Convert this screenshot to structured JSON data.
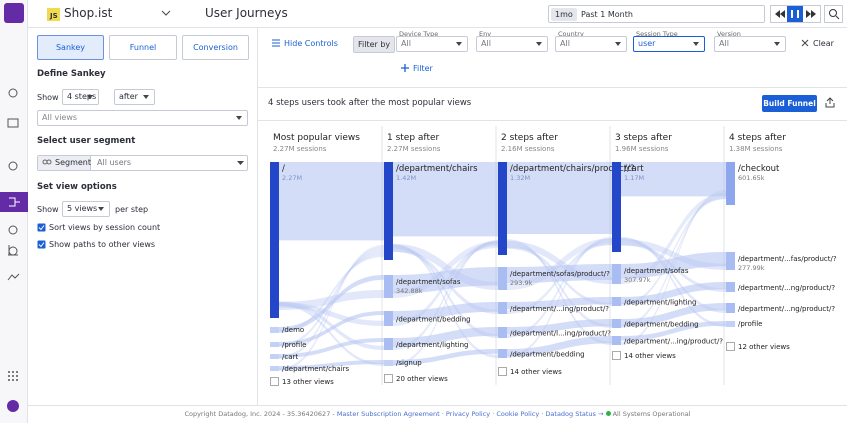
{
  "app": {
    "badge": "JS",
    "name": "Shop.ist",
    "page_title": "User Journeys",
    "time_short": "1mo",
    "time_range": "Past 1 Month"
  },
  "panel": {
    "tabs": [
      "Sankey",
      "Funnel",
      "Conversion"
    ],
    "define_title": "Define Sankey",
    "show_label": "Show",
    "steps": "4 steps",
    "direction": "after",
    "view_placeholder": "All views",
    "segment_title": "Select user segment",
    "segment_label": "Segment",
    "segment_value": "All users",
    "options_title": "Set view options",
    "views_show": "Show",
    "views_count": "5 views",
    "views_suffix": "per step",
    "checkboxes": [
      "Sort views by session count",
      "Show paths to other views"
    ]
  },
  "filters": {
    "hide": "Hide Controls",
    "filter_by": "Filter by",
    "items": [
      {
        "label": "Device Type",
        "value": "All"
      },
      {
        "label": "Env",
        "value": "All"
      },
      {
        "label": "Country",
        "value": "All"
      },
      {
        "label": "Session Type",
        "value": "user"
      },
      {
        "label": "Version",
        "value": "All"
      }
    ],
    "clear": "Clear",
    "add": "Filter"
  },
  "sankey": {
    "summary": "4 steps users took after the most popular views",
    "build": "Build Funnel",
    "columns": [
      {
        "title": "Most popular views",
        "sessions": "2.27M sessions",
        "nodes": [
          {
            "label": "/",
            "value": "2.27M"
          },
          {
            "label": "/demo"
          },
          {
            "label": "/profile"
          },
          {
            "label": "/cart"
          },
          {
            "label": "/department/chairs"
          },
          {
            "label": "13 other views"
          }
        ]
      },
      {
        "title": "1 step after",
        "sessions": "2.27M sessions",
        "nodes": [
          {
            "label": "/department/chairs",
            "value": "1.42M"
          },
          {
            "label": "/department/sofas",
            "value": "342.88k"
          },
          {
            "label": "/department/bedding"
          },
          {
            "label": "/department/lighting"
          },
          {
            "label": "/signup"
          },
          {
            "label": "20 other views"
          }
        ]
      },
      {
        "title": "2 steps after",
        "sessions": "2.16M sessions",
        "nodes": [
          {
            "label": "/department/chairs/product/?",
            "value": "1.32M"
          },
          {
            "label": "/department/sofas/product/?",
            "value": "293.9k"
          },
          {
            "label": "/department/...ing/product/?"
          },
          {
            "label": "/department/l...ing/product/?"
          },
          {
            "label": "/department/bedding"
          },
          {
            "label": "14 other views"
          }
        ]
      },
      {
        "title": "3 steps after",
        "sessions": "1.96M sessions",
        "nodes": [
          {
            "label": "/cart",
            "value": "1.17M"
          },
          {
            "label": "/department/sofas",
            "value": "307.97k"
          },
          {
            "label": "/department/lighting"
          },
          {
            "label": "/department/bedding"
          },
          {
            "label": "/department/...ing/product/?"
          },
          {
            "label": "14 other views"
          }
        ]
      },
      {
        "title": "4 steps after",
        "sessions": "1.38M sessions",
        "nodes": [
          {
            "label": "/checkout",
            "value": "601.65k"
          },
          {
            "label": "/department/...fas/product/?",
            "value": "277.99k"
          },
          {
            "label": "/department/...ng/product/?"
          },
          {
            "label": "/department/...ng/product/?"
          },
          {
            "label": "/profile"
          },
          {
            "label": "12 other views"
          }
        ]
      }
    ]
  },
  "footer": {
    "copyright": "Copyright Datadog, Inc. 2024 - 35.36420627 -",
    "links": [
      "Master Subscription Agreement",
      "Privacy Policy",
      "Cookie Policy",
      "Datadog Status →"
    ],
    "status": "All Systems Operational"
  }
}
